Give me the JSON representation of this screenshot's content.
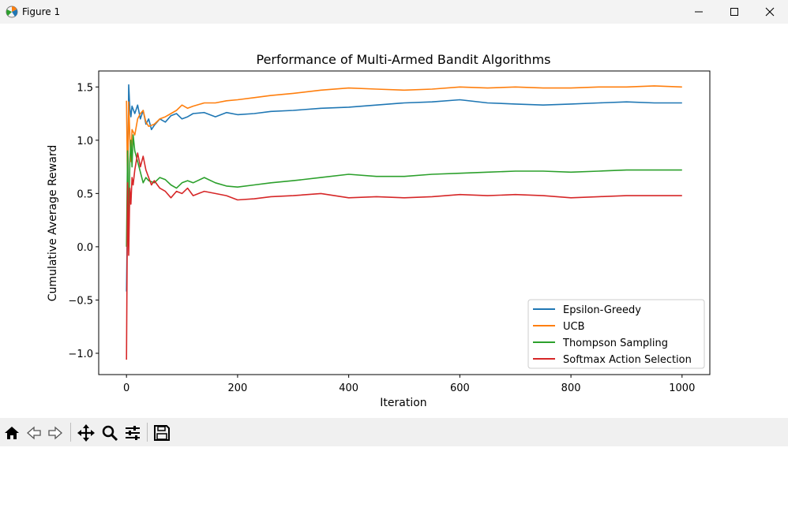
{
  "window": {
    "title": "Figure 1",
    "icons": {
      "app": "matplotlib-icon",
      "minimize": "minimize-icon",
      "maximize": "maximize-icon",
      "close": "close-icon"
    }
  },
  "toolbar": {
    "buttons": [
      "home-icon",
      "back-icon",
      "forward-icon",
      "pan-icon",
      "zoom-icon",
      "configure-subplots-icon",
      "save-icon"
    ]
  },
  "chart_data": {
    "type": "line",
    "title": "Performance of Multi-Armed Bandit Algorithms",
    "xlabel": "Iteration",
    "ylabel": "Cumulative Average Reward",
    "xlim": [
      -50,
      1050
    ],
    "ylim": [
      -1.2,
      1.65
    ],
    "xticks": [
      0,
      200,
      400,
      600,
      800,
      1000
    ],
    "xtick_labels": [
      "0",
      "200",
      "400",
      "600",
      "800",
      "1000"
    ],
    "yticks": [
      -1.0,
      -0.5,
      0.0,
      0.5,
      1.0,
      1.5
    ],
    "ytick_labels": [
      "−1.0",
      "−0.5",
      "0.0",
      "0.5",
      "1.0",
      "1.5"
    ],
    "grid": false,
    "legend_position": "lower-right",
    "series": [
      {
        "name": "Epsilon-Greedy",
        "color": "#1f77b4",
        "x": [
          0,
          2,
          4,
          6,
          8,
          10,
          15,
          20,
          25,
          30,
          35,
          40,
          45,
          50,
          60,
          70,
          80,
          90,
          100,
          110,
          120,
          140,
          160,
          180,
          200,
          230,
          260,
          300,
          350,
          400,
          450,
          500,
          550,
          600,
          650,
          700,
          750,
          800,
          850,
          900,
          950,
          1000
        ],
        "y": [
          -0.42,
          0.4,
          1.52,
          1.3,
          1.22,
          1.32,
          1.25,
          1.33,
          1.2,
          1.28,
          1.15,
          1.2,
          1.1,
          1.14,
          1.2,
          1.17,
          1.23,
          1.25,
          1.2,
          1.22,
          1.25,
          1.26,
          1.22,
          1.26,
          1.24,
          1.25,
          1.27,
          1.28,
          1.3,
          1.31,
          1.33,
          1.35,
          1.36,
          1.38,
          1.35,
          1.34,
          1.33,
          1.34,
          1.35,
          1.36,
          1.35,
          1.35
        ]
      },
      {
        "name": "UCB",
        "color": "#ff7f0e",
        "x": [
          0,
          2,
          4,
          6,
          8,
          10,
          15,
          20,
          25,
          30,
          35,
          40,
          50,
          60,
          70,
          80,
          90,
          100,
          110,
          120,
          140,
          160,
          180,
          200,
          230,
          260,
          300,
          350,
          400,
          450,
          500,
          550,
          600,
          650,
          700,
          750,
          800,
          850,
          900,
          950,
          1000
        ],
        "y": [
          1.37,
          0.55,
          1.36,
          1.05,
          0.8,
          1.1,
          1.05,
          1.2,
          1.25,
          1.28,
          1.17,
          1.13,
          1.15,
          1.2,
          1.22,
          1.25,
          1.28,
          1.33,
          1.3,
          1.32,
          1.35,
          1.35,
          1.37,
          1.38,
          1.4,
          1.42,
          1.44,
          1.47,
          1.49,
          1.48,
          1.47,
          1.48,
          1.5,
          1.49,
          1.5,
          1.49,
          1.49,
          1.5,
          1.5,
          1.51,
          1.5
        ]
      },
      {
        "name": "Thompson Sampling",
        "color": "#2ca02c",
        "x": [
          0,
          2,
          4,
          6,
          8,
          10,
          12,
          15,
          20,
          25,
          30,
          35,
          40,
          50,
          60,
          70,
          80,
          90,
          100,
          110,
          120,
          140,
          160,
          180,
          200,
          230,
          260,
          300,
          350,
          400,
          450,
          500,
          550,
          600,
          650,
          700,
          750,
          800,
          850,
          900,
          950,
          1000
        ],
        "y": [
          0.0,
          0.9,
          0.1,
          0.8,
          1.0,
          0.75,
          1.05,
          0.9,
          0.8,
          0.7,
          0.6,
          0.65,
          0.62,
          0.6,
          0.65,
          0.63,
          0.58,
          0.55,
          0.6,
          0.62,
          0.6,
          0.65,
          0.6,
          0.57,
          0.56,
          0.58,
          0.6,
          0.62,
          0.65,
          0.68,
          0.66,
          0.66,
          0.68,
          0.69,
          0.7,
          0.71,
          0.71,
          0.7,
          0.71,
          0.72,
          0.72,
          0.72
        ]
      },
      {
        "name": "Softmax Action Selection",
        "color": "#d62728",
        "x": [
          0,
          2,
          4,
          6,
          8,
          10,
          12,
          15,
          20,
          25,
          30,
          35,
          40,
          45,
          50,
          60,
          70,
          80,
          90,
          100,
          110,
          120,
          140,
          160,
          180,
          200,
          230,
          260,
          300,
          350,
          400,
          450,
          500,
          550,
          600,
          650,
          700,
          750,
          800,
          850,
          900,
          950,
          1000
        ],
        "y": [
          -1.06,
          0.6,
          -0.08,
          0.55,
          0.4,
          0.65,
          0.58,
          0.72,
          0.88,
          0.75,
          0.85,
          0.72,
          0.65,
          0.58,
          0.62,
          0.55,
          0.52,
          0.46,
          0.52,
          0.5,
          0.55,
          0.48,
          0.52,
          0.5,
          0.48,
          0.44,
          0.45,
          0.47,
          0.48,
          0.5,
          0.46,
          0.47,
          0.46,
          0.47,
          0.49,
          0.48,
          0.49,
          0.48,
          0.46,
          0.47,
          0.48,
          0.48,
          0.48
        ]
      }
    ]
  }
}
